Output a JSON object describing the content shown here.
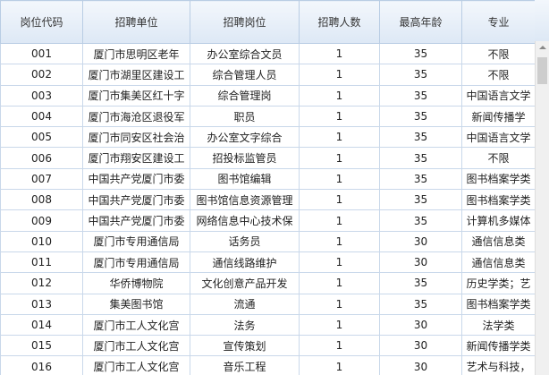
{
  "table": {
    "header": [
      "岗位代码",
      "招聘单位",
      "招聘岗位",
      "招聘人数",
      "最高年龄",
      "专业"
    ],
    "rows": [
      [
        "001",
        "厦门市思明区老年",
        "办公室综合文员",
        "1",
        "35",
        "不限"
      ],
      [
        "002",
        "厦门市湖里区建设工",
        "综合管理人员",
        "1",
        "35",
        "不限"
      ],
      [
        "003",
        "厦门市集美区红十字",
        "综合管理岗",
        "1",
        "35",
        "中国语言文学"
      ],
      [
        "004",
        "厦门市海沧区退役军",
        "职员",
        "1",
        "35",
        "新闻传播学"
      ],
      [
        "005",
        "厦门市同安区社会治",
        "办公室文字综合",
        "1",
        "35",
        "中国语言文学"
      ],
      [
        "006",
        "厦门市翔安区建设工",
        "招投标监管员",
        "1",
        "35",
        "不限"
      ],
      [
        "007",
        "中国共产党厦门市委",
        "图书馆编辑",
        "1",
        "35",
        "图书档案学类"
      ],
      [
        "008",
        "中国共产党厦门市委",
        "图书馆信息资源管理",
        "1",
        "35",
        "图书档案学类"
      ],
      [
        "009",
        "中国共产党厦门市委",
        "网络信息中心技术保",
        "1",
        "35",
        "计算机多媒体"
      ],
      [
        "010",
        "厦门市专用通信局",
        "话务员",
        "1",
        "30",
        "通信信息类"
      ],
      [
        "011",
        "厦门市专用通信局",
        "通信线路维护",
        "1",
        "30",
        "通信信息类"
      ],
      [
        "012",
        "华侨博物院",
        "文化创意产品开发",
        "1",
        "35",
        "历史学类；艺"
      ],
      [
        "013",
        "集美图书馆",
        "流通",
        "1",
        "35",
        "图书档案学类"
      ],
      [
        "014",
        "厦门市工人文化宫",
        "法务",
        "1",
        "30",
        "法学类"
      ],
      [
        "015",
        "厦门市工人文化宫",
        "宣传策划",
        "1",
        "30",
        "新闻传播学类"
      ],
      [
        "016",
        "厦门市工人文化宫",
        "音乐工程",
        "1",
        "30",
        "艺术与科技，"
      ]
    ]
  }
}
